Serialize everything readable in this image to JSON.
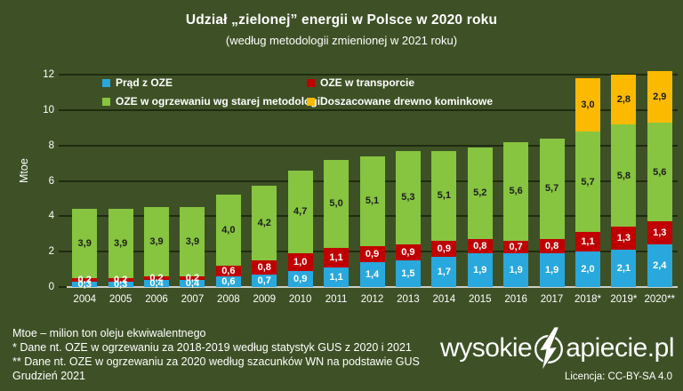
{
  "title": "Udział „zielonej” energii w Polsce w 2020 roku",
  "subtitle": "(według metodologii zmienionej w 2021 roku)",
  "colors": {
    "background": "#3e5126",
    "grid": "#1f2b10",
    "zero_axis": "#cdd0c7",
    "text": "#ffffff",
    "blue": "#29a8dd",
    "red": "#c00000",
    "green": "#87c440",
    "orange": "#fbba00"
  },
  "chart_data": {
    "type": "bar",
    "stacked": true,
    "categories": [
      "2004",
      "2005",
      "2006",
      "2007",
      "2008",
      "2009",
      "2010",
      "2011",
      "2012",
      "2013",
      "2014",
      "2015",
      "2016",
      "2017",
      "2018*",
      "2019*",
      "2020**"
    ],
    "series": [
      {
        "name": "Prąd z OZE",
        "color": "#29a8dd",
        "label_color": "#ffffff",
        "values": [
          0.3,
          0.3,
          0.4,
          0.4,
          0.6,
          0.7,
          0.9,
          1.1,
          1.4,
          1.5,
          1.7,
          1.9,
          1.9,
          1.9,
          2.0,
          2.1,
          2.4
        ]
      },
      {
        "name": "OZE w transporcie",
        "color": "#c00000",
        "label_color": "#ffffff",
        "values": [
          0.2,
          0.2,
          0.2,
          0.2,
          0.6,
          0.8,
          1.0,
          1.1,
          0.9,
          0.9,
          0.9,
          0.8,
          0.7,
          0.8,
          1.1,
          1.3,
          1.3
        ]
      },
      {
        "name": "OZE w ogrzewaniu wg starej metodologii",
        "color": "#87c440",
        "label_color": "#1d1d1d",
        "values": [
          3.9,
          3.9,
          3.9,
          3.9,
          4.0,
          4.2,
          4.7,
          5.0,
          5.1,
          5.3,
          5.1,
          5.2,
          5.6,
          5.7,
          5.7,
          5.8,
          5.6
        ]
      },
      {
        "name": "Doszacowane drewno kominkowe",
        "color": "#fbba00",
        "label_color": "#1d1d1d",
        "values": [
          0,
          0,
          0,
          0,
          0,
          0,
          0,
          0,
          0,
          0,
          0,
          0,
          0,
          0,
          3.0,
          2.8,
          2.9
        ]
      }
    ],
    "xlabel": "",
    "ylabel": "Mtoe",
    "ylim": [
      0,
      12
    ],
    "ytick_step": 2,
    "yticks": [
      0,
      2,
      4,
      6,
      8,
      10,
      12
    ],
    "grid": true,
    "legend_position": "top"
  },
  "footnotes": [
    "Mtoe – milion ton oleju ekwiwalentnego",
    "* Dane nt. OZE w ogrzewaniu za 2018-2019 według statystyk GUS z 2020 i 2021",
    "**  Dane nt. OZE w ogrzewaniu za 2020 według szacunków WN na podstawie GUS",
    "Grudzień 2021"
  ],
  "logo": {
    "prefix": "wysokie",
    "suffix": "apiecie.pl",
    "license": "Licencja: CC-BY-SA 4.0"
  }
}
